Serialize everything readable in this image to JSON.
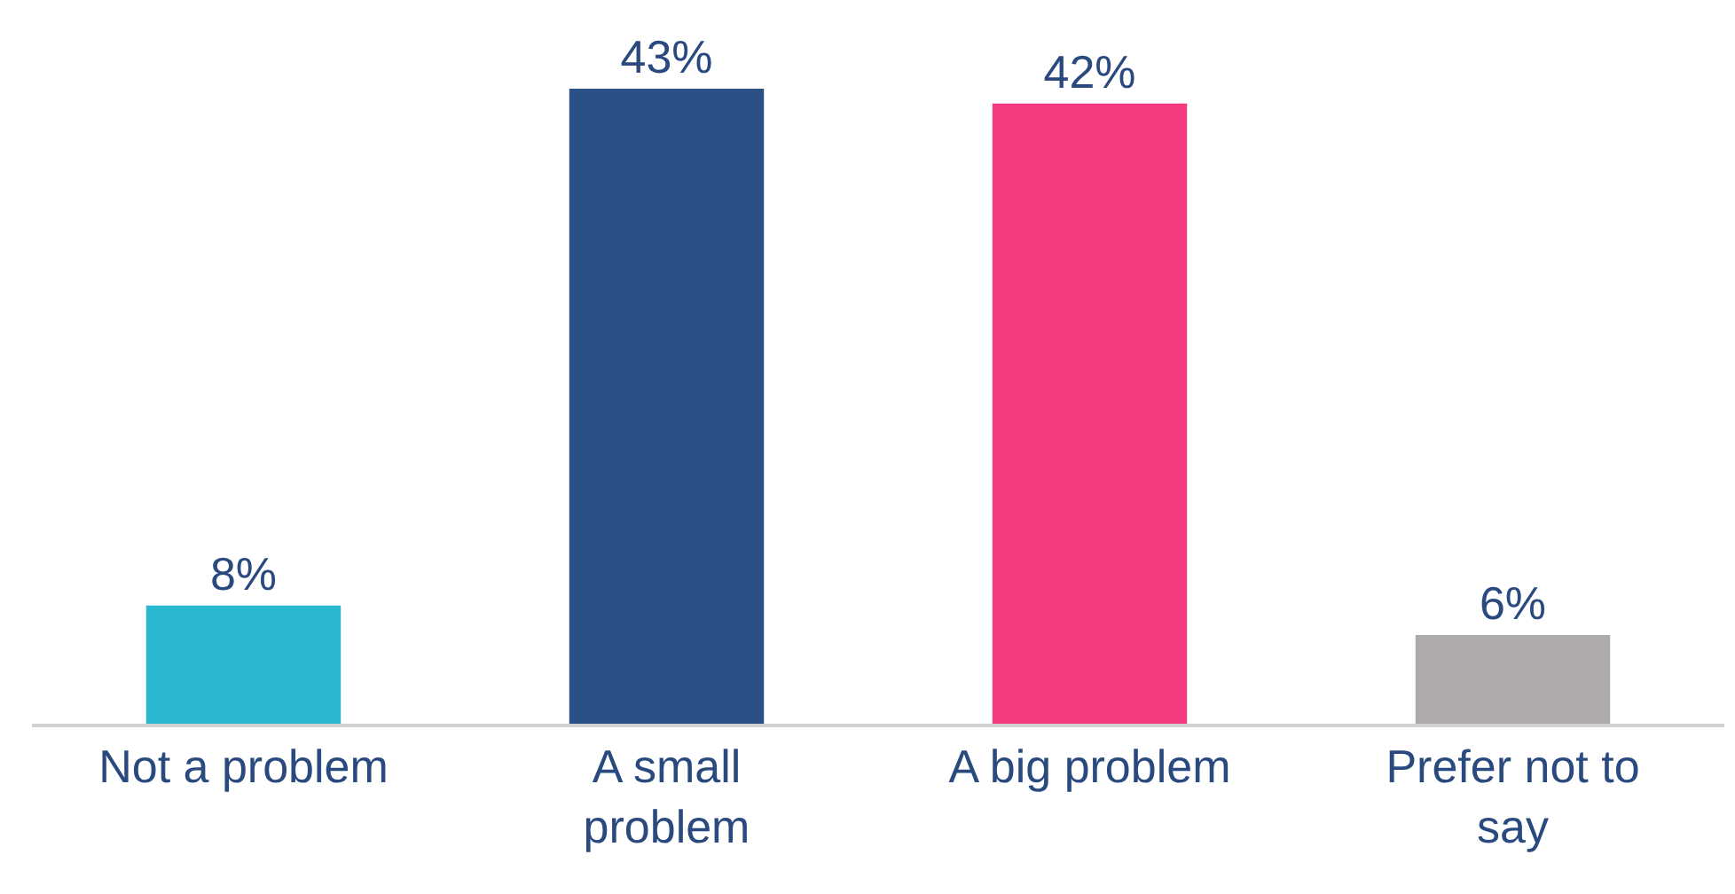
{
  "chart_data": {
    "type": "bar",
    "categories": [
      "Not a problem",
      "A small problem",
      "A big problem",
      "Prefer not to say"
    ],
    "values": [
      8,
      43,
      42,
      6
    ],
    "colors": [
      "#29b8cf",
      "#2a5086",
      "#f53a7f",
      "#adaaa9"
    ],
    "value_labels": [
      "8%",
      "43%",
      "42%",
      "6%"
    ]
  }
}
